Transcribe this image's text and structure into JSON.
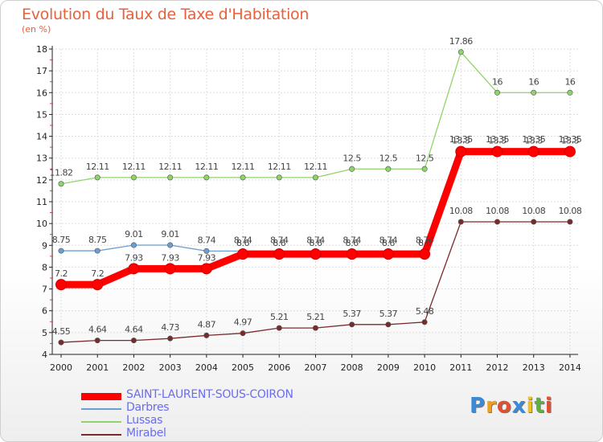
{
  "chart_data": {
    "type": "line",
    "title": "Evolution du Taux de Taxe d'Habitation",
    "subtitle": "(en %)",
    "x": [
      "2000",
      "2001",
      "2002",
      "2003",
      "2004",
      "2005",
      "2006",
      "2007",
      "2008",
      "2009",
      "2010",
      "2011",
      "2012",
      "2013",
      "2014"
    ],
    "ylim": [
      4,
      18
    ],
    "yticks": [
      "4",
      "5",
      "6",
      "7",
      "8",
      "9",
      "10",
      "11",
      "12",
      "13",
      "14",
      "15",
      "16",
      "17",
      "18"
    ],
    "grid": true,
    "series": [
      {
        "name": "SAINT-LAURENT-SOUS-COIRON",
        "color": "#ff0000",
        "values": [
          7.2,
          7.2,
          7.93,
          7.93,
          7.93,
          8.6,
          8.6,
          8.6,
          8.6,
          8.6,
          8.6,
          13.3,
          13.3,
          13.3,
          13.3
        ],
        "labels": [
          "7.2",
          "7.2",
          "7.93",
          "7.93",
          "7.93",
          "8.6",
          "8.6",
          "8.6",
          "8.6",
          "8.6",
          "8.6",
          "13.3",
          "13.3",
          "13.3",
          "13.3"
        ]
      },
      {
        "name": "Darbres",
        "color": "#6a9fd4",
        "values": [
          8.75,
          8.75,
          9.01,
          9.01,
          8.74,
          8.74,
          8.74,
          8.74,
          8.74,
          8.74,
          8.74,
          13.35,
          13.35,
          13.35,
          13.35
        ],
        "labels": [
          "8.75",
          "8.75",
          "9.01",
          "9.01",
          "8.74",
          "8.74",
          "8.74",
          "8.74",
          "8.74",
          "8.74",
          "8.74",
          "13.35",
          "13.35",
          "13.35",
          "13.35"
        ]
      },
      {
        "name": "Lussas",
        "color": "#8fd46a",
        "values": [
          11.82,
          12.11,
          12.11,
          12.11,
          12.11,
          12.11,
          12.11,
          12.11,
          12.5,
          12.5,
          12.5,
          17.86,
          16,
          16,
          16
        ],
        "labels": [
          "11.82",
          "12.11",
          "12.11",
          "12.11",
          "12.11",
          "12.11",
          "12.11",
          "12.11",
          "12.5",
          "12.5",
          "12.5",
          "17.86",
          "16",
          "16",
          "16"
        ]
      },
      {
        "name": "Mirabel",
        "color": "#7a2a2a",
        "values": [
          4.55,
          4.64,
          4.64,
          4.73,
          4.87,
          4.97,
          5.21,
          5.21,
          5.37,
          5.37,
          5.48,
          10.08,
          10.08,
          10.08,
          10.08
        ],
        "labels": [
          "4.55",
          "4.64",
          "4.64",
          "4.73",
          "4.87",
          "4.97",
          "5.21",
          "5.21",
          "5.37",
          "5.37",
          "5.48",
          "10.08",
          "10.08",
          "10.08",
          "10.08"
        ]
      }
    ],
    "legend_position": "bottom-left"
  },
  "logo": {
    "letters": [
      "P",
      "r",
      "o",
      "x",
      "i",
      "t",
      "i"
    ],
    "colors": [
      "#3a8ad8",
      "#f0a020",
      "#e05030",
      "#3a8ad8",
      "#f0c020",
      "#60b040",
      "#e05030"
    ]
  }
}
